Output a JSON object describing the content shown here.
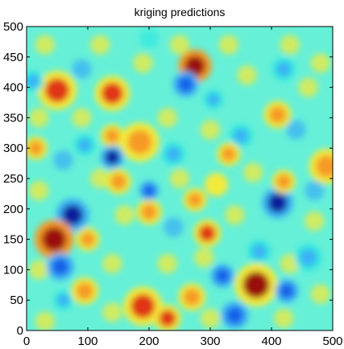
{
  "chart_data": {
    "type": "heatmap",
    "title": "kriging predictions",
    "xlabel": "",
    "ylabel": "",
    "xlim": [
      0,
      500
    ],
    "ylim": [
      0,
      500
    ],
    "xticks": [
      0,
      100,
      200,
      300,
      400,
      500
    ],
    "yticks": [
      0,
      50,
      100,
      150,
      200,
      250,
      300,
      350,
      400,
      450,
      500
    ],
    "colormap": "jet",
    "colors": {
      "background_field": "#66f0d8",
      "dark_blue": "#0a1a9a",
      "blue": "#1560e8",
      "light_blue": "#3bb0f5",
      "cyan": "#30e8e0",
      "yellow": "#f4ea3a",
      "orange": "#f59a25",
      "red": "#e03515",
      "dark_red": "#9a0a08"
    },
    "blobs": [
      {
        "x": 50,
        "y": 395,
        "r": 20,
        "v": 0.9
      },
      {
        "x": 140,
        "y": 390,
        "r": 18,
        "v": 0.85
      },
      {
        "x": 275,
        "y": 435,
        "r": 17,
        "v": 0.95
      },
      {
        "x": 260,
        "y": 405,
        "r": 13,
        "v": 0.1
      },
      {
        "x": 185,
        "y": 310,
        "r": 20,
        "v": 0.8
      },
      {
        "x": 140,
        "y": 320,
        "r": 12,
        "v": 0.75
      },
      {
        "x": 140,
        "y": 285,
        "r": 12,
        "v": 0.05
      },
      {
        "x": 150,
        "y": 245,
        "r": 13,
        "v": 0.8
      },
      {
        "x": 75,
        "y": 190,
        "r": 17,
        "v": 0.05
      },
      {
        "x": 45,
        "y": 150,
        "r": 20,
        "v": 0.97
      },
      {
        "x": 55,
        "y": 105,
        "r": 14,
        "v": 0.15
      },
      {
        "x": 95,
        "y": 65,
        "r": 14,
        "v": 0.8
      },
      {
        "x": 60,
        "y": 50,
        "r": 10,
        "v": 0.2
      },
      {
        "x": 190,
        "y": 40,
        "r": 20,
        "v": 0.9
      },
      {
        "x": 230,
        "y": 20,
        "r": 14,
        "v": 0.85
      },
      {
        "x": 200,
        "y": 195,
        "r": 13,
        "v": 0.8
      },
      {
        "x": 240,
        "y": 290,
        "r": 12,
        "v": 0.2
      },
      {
        "x": 275,
        "y": 215,
        "r": 12,
        "v": 0.75
      },
      {
        "x": 295,
        "y": 160,
        "r": 14,
        "v": 0.85
      },
      {
        "x": 310,
        "y": 240,
        "r": 12,
        "v": 0.7
      },
      {
        "x": 375,
        "y": 75,
        "r": 22,
        "v": 0.93
      },
      {
        "x": 340,
        "y": 25,
        "r": 14,
        "v": 0.1
      },
      {
        "x": 410,
        "y": 210,
        "r": 16,
        "v": 0.05
      },
      {
        "x": 420,
        "y": 245,
        "r": 12,
        "v": 0.75
      },
      {
        "x": 490,
        "y": 270,
        "r": 18,
        "v": 0.8
      },
      {
        "x": 425,
        "y": 65,
        "r": 12,
        "v": 0.12
      },
      {
        "x": 380,
        "y": 130,
        "r": 12,
        "v": 0.2
      },
      {
        "x": 270,
        "y": 55,
        "r": 14,
        "v": 0.8
      },
      {
        "x": 320,
        "y": 90,
        "r": 12,
        "v": 0.15
      },
      {
        "x": 410,
        "y": 355,
        "r": 14,
        "v": 0.75
      },
      {
        "x": 200,
        "y": 230,
        "r": 10,
        "v": 0.15
      },
      {
        "x": 95,
        "y": 305,
        "r": 11,
        "v": 0.2
      },
      {
        "x": 100,
        "y": 150,
        "r": 12,
        "v": 0.75
      },
      {
        "x": 350,
        "y": 320,
        "r": 12,
        "v": 0.2
      },
      {
        "x": 460,
        "y": 120,
        "r": 14,
        "v": 0.3
      },
      {
        "x": 10,
        "y": 410,
        "r": 11,
        "v": 0.2
      },
      {
        "x": 305,
        "y": 380,
        "r": 10,
        "v": 0.2
      },
      {
        "x": 420,
        "y": 430,
        "r": 12,
        "v": 0.25
      },
      {
        "x": 330,
        "y": 290,
        "r": 12,
        "v": 0.75
      },
      {
        "x": 15,
        "y": 300,
        "r": 12,
        "v": 0.8
      }
    ]
  }
}
